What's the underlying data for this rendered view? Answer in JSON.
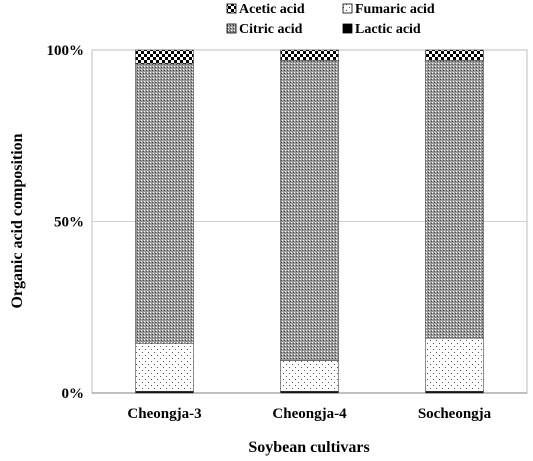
{
  "chart_data": {
    "type": "bar",
    "stacked": true,
    "normalized": true,
    "title": "",
    "xlabel": "Soybean cultivars",
    "ylabel": "Organic acid composition",
    "ylim": [
      0,
      100
    ],
    "yticks": [
      "0%",
      "50%",
      "100%"
    ],
    "grid": "horizontal at 50%",
    "legend_position": "top",
    "categories": [
      "Cheongja-3",
      "Cheongja-4",
      "Socheongja"
    ],
    "series": [
      {
        "name": "Lactic acid",
        "values": [
          0.5,
          0.5,
          0.5
        ],
        "pattern": "solid",
        "color": "#000000"
      },
      {
        "name": "Fumaric acid",
        "values": [
          14.0,
          9.0,
          15.5
        ],
        "pattern": "dots",
        "color": "#ffffff"
      },
      {
        "name": "Citric acid",
        "values": [
          81.5,
          87.5,
          81.0
        ],
        "pattern": "dense-dots",
        "color": "#8a8a8a"
      },
      {
        "name": "Acetic acid",
        "values": [
          4.0,
          3.0,
          3.0
        ],
        "pattern": "checker",
        "color": "#000000"
      }
    ]
  }
}
